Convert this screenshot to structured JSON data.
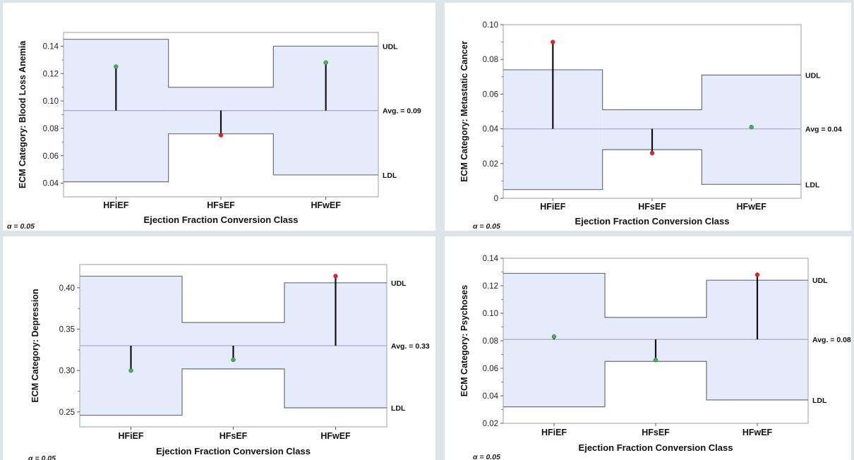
{
  "colors": {
    "band_fill": "#e6ebfb",
    "band_stroke": "#6a6f78",
    "avg_line": "#a8b0c8",
    "in_limits_dot": "#3fb34f",
    "out_limits_dot": "#e2252d",
    "frame": "#9aa0aa"
  },
  "chart_data": [
    {
      "type": "analysis_of_means",
      "categories": [
        "HFiEF",
        "HFsEF",
        "HFwEF"
      ],
      "values": [
        0.125,
        0.075,
        0.128
      ],
      "udl": [
        0.145,
        0.11,
        0.14
      ],
      "ldl": [
        0.041,
        0.076,
        0.046
      ],
      "avg": 0.093,
      "avg_label": "Avg. = 0.09",
      "udl_label": "UDL",
      "ldl_label": "LDL",
      "ylim": [
        0.03,
        0.15
      ],
      "yticks": [
        0.04,
        0.06,
        0.08,
        0.1,
        0.12,
        0.14
      ],
      "ytick_labels": [
        "0.04",
        "0.06",
        "0.08",
        "0.10",
        "0.12",
        "0.14"
      ],
      "ylabel": "ECM Category: Blood Loss Anemia",
      "xlabel": "Ejection Fraction Conversion Class",
      "alpha_label": "α = 0.05"
    },
    {
      "type": "analysis_of_means",
      "categories": [
        "HFiEF",
        "HFsEF",
        "HFwEF"
      ],
      "values": [
        0.09,
        0.026,
        0.041
      ],
      "udl": [
        0.074,
        0.051,
        0.071
      ],
      "ldl": [
        0.005,
        0.028,
        0.008
      ],
      "avg": 0.04,
      "avg_label": "Avg = 0.04",
      "udl_label": "UDL",
      "ldl_label": "LDL",
      "ylim": [
        0,
        0.1
      ],
      "yticks": [
        0,
        0.02,
        0.04,
        0.06,
        0.08,
        0.1
      ],
      "ytick_labels": [
        "0",
        "0.02",
        "0.04",
        "0.06",
        "0.08",
        "0.10"
      ],
      "ylabel": "ECM Category: Metastatic Cancer",
      "xlabel": "Ejection Fraction Conversion Class",
      "alpha_label": "α = 0.05"
    },
    {
      "type": "analysis_of_means",
      "categories": [
        "HFiEF",
        "HFsEF",
        "HFwEF"
      ],
      "values": [
        0.3,
        0.313,
        0.414
      ],
      "udl": [
        0.414,
        0.358,
        0.406
      ],
      "ldl": [
        0.246,
        0.302,
        0.255
      ],
      "avg": 0.33,
      "avg_label": "Avg. = 0.33",
      "udl_label": "UDL",
      "ldl_label": "LDL",
      "ylim": [
        0.232,
        0.428
      ],
      "yticks": [
        0.25,
        0.3,
        0.35,
        0.4
      ],
      "ytick_labels": [
        "0.25",
        "0.30",
        "0.35",
        "0.40"
      ],
      "ylabel": "ECM Category: Depression",
      "xlabel": "Ejection Fraction Conversion Class",
      "alpha_label": "α = 0.05"
    },
    {
      "type": "analysis_of_means",
      "categories": [
        "HFiEF",
        "HFsEF",
        "HFwEF"
      ],
      "values": [
        0.083,
        0.066,
        0.128
      ],
      "udl": [
        0.129,
        0.097,
        0.124
      ],
      "ldl": [
        0.032,
        0.065,
        0.037
      ],
      "avg": 0.081,
      "avg_label": "Avg. = 0.08",
      "udl_label": "UDL",
      "ldl_label": "LDL",
      "ylim": [
        0.02,
        0.14
      ],
      "yticks": [
        0.02,
        0.04,
        0.06,
        0.08,
        0.1,
        0.12,
        0.14
      ],
      "ytick_labels": [
        "0.02",
        "0.04",
        "0.06",
        "0.08",
        "0.10",
        "0.12",
        "0.14"
      ],
      "ylabel": "ECM Category: Psychoses",
      "xlabel": "Ejection Fraction Conversion Class",
      "alpha_label": "α = 0.05"
    }
  ]
}
